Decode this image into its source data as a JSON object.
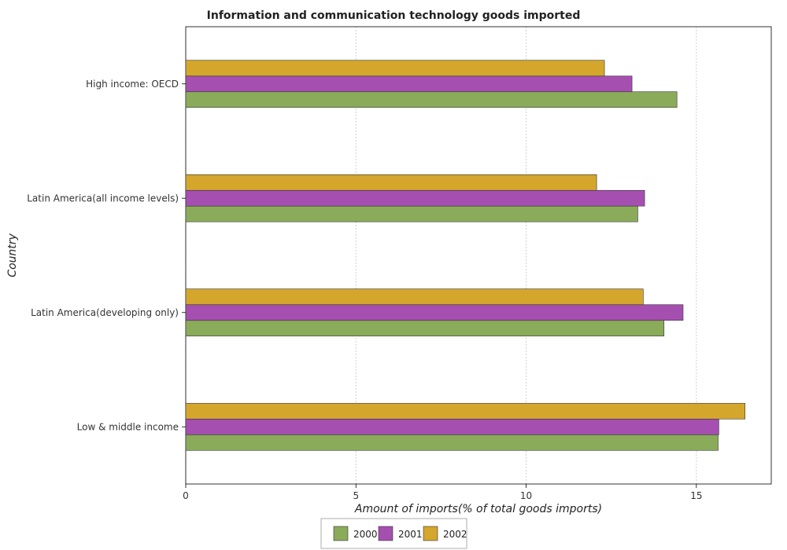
{
  "chart_data": {
    "type": "bar",
    "orientation": "horizontal",
    "title": "Information and communication technology goods imported",
    "xlabel": "Amount of imports(% of total goods imports)",
    "ylabel": "Country",
    "xlim": [
      0,
      17.2
    ],
    "xticks": [
      0,
      5,
      10,
      15
    ],
    "grid": true,
    "legend_position": "bottom-center",
    "categories": [
      "High income: OECD",
      "Latin America(all income levels)",
      "Latin America(developing only)",
      "Low & middle income"
    ],
    "series": [
      {
        "name": "2000",
        "color": "#8aab5a",
        "values": [
          14.43,
          13.28,
          14.05,
          15.64
        ]
      },
      {
        "name": "2001",
        "color": "#a54fb0",
        "values": [
          13.11,
          13.48,
          14.61,
          15.66
        ]
      },
      {
        "name": "2002",
        "color": "#d4a72c",
        "values": [
          12.3,
          12.07,
          13.44,
          16.43
        ]
      }
    ]
  }
}
